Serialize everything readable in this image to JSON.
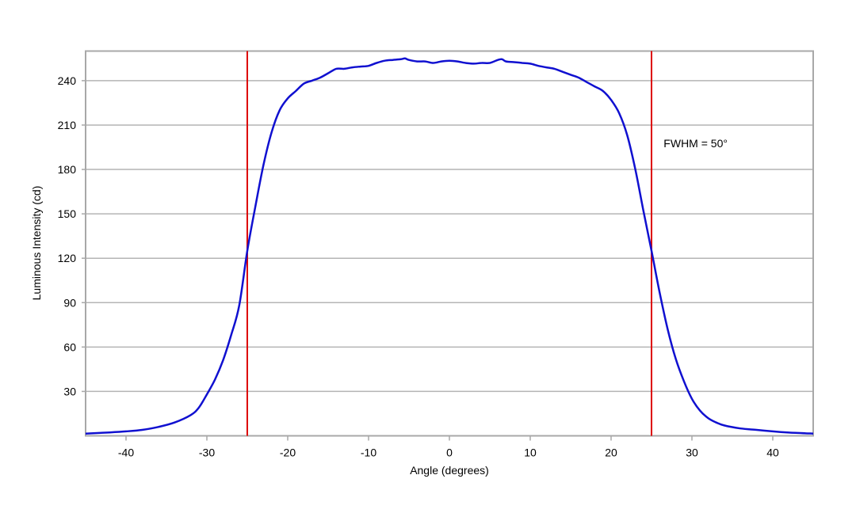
{
  "chart_data": {
    "type": "line",
    "title": "",
    "xlabel": "Angle (degrees)",
    "ylabel": "Luminous Intensity (cd)",
    "xlim": [
      -45,
      45
    ],
    "ylim": [
      0,
      260
    ],
    "xticks": [
      -40,
      -30,
      -20,
      -10,
      0,
      10,
      20,
      30,
      40
    ],
    "yticks": [
      30,
      60,
      90,
      120,
      150,
      180,
      210,
      240
    ],
    "grid": "horizontal",
    "series": [
      {
        "name": "Luminous Intensity",
        "color": "#1010d0",
        "x": [
          -45,
          -42,
          -40,
          -38,
          -36,
          -34,
          -32,
          -31,
          -30,
          -29,
          -28,
          -27,
          -26,
          -25,
          -24,
          -23,
          -22,
          -21,
          -20,
          -19,
          -18,
          -17,
          -16,
          -15,
          -14,
          -13,
          -12,
          -11,
          -10,
          -9,
          -8,
          -7,
          -6,
          -5.5,
          -5,
          -4,
          -3,
          -2,
          -1,
          0,
          1,
          2,
          3,
          4,
          5,
          6,
          6.5,
          7,
          8,
          9,
          10,
          11,
          12,
          13,
          14,
          15,
          16,
          17,
          18,
          19,
          20,
          21,
          22,
          23,
          24,
          25,
          26,
          27,
          28,
          29,
          30,
          31,
          32,
          33,
          34,
          36,
          38,
          40,
          42,
          45
        ],
        "y": [
          1.5,
          2.3,
          3,
          4,
          6,
          9,
          14,
          19,
          28,
          38,
          51,
          68,
          88,
          125,
          155,
          183,
          205,
          220,
          228,
          233,
          238,
          240,
          242,
          245,
          248,
          248,
          249,
          249.5,
          250,
          252,
          253.5,
          254,
          254.5,
          255,
          254,
          253,
          253,
          252,
          253,
          253.5,
          253,
          252,
          251.5,
          252,
          252,
          254,
          254.5,
          253,
          252.5,
          252,
          251.5,
          250,
          249,
          248,
          246,
          244,
          242,
          239,
          236,
          233,
          227,
          218,
          203,
          180,
          152,
          125,
          97,
          72,
          52,
          37,
          25,
          17,
          12,
          9,
          7,
          5,
          4,
          3,
          2.2,
          1.5
        ]
      }
    ],
    "reference_lines": [
      {
        "x": -25,
        "color": "#dd0000"
      },
      {
        "x": 25,
        "color": "#dd0000"
      }
    ],
    "annotations": [
      {
        "text": "FWHM = 50°",
        "x": 26.5,
        "y": 195
      }
    ]
  }
}
